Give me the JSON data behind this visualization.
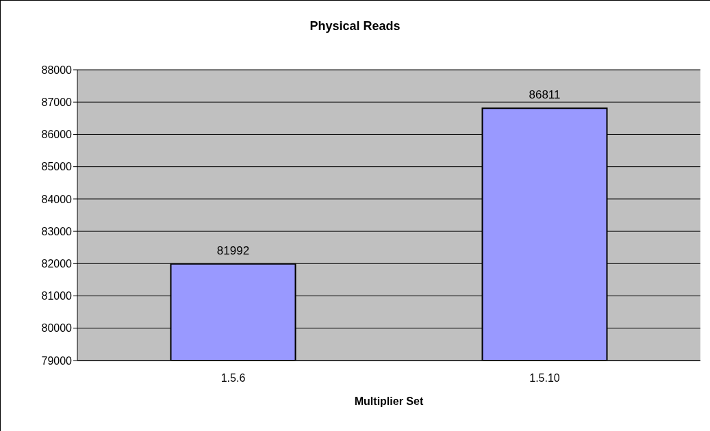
{
  "chart_data": {
    "type": "bar",
    "title": "Physical Reads",
    "xlabel": "Multiplier Set",
    "categories": [
      "1.5.6",
      "1.5.10"
    ],
    "values": [
      81992,
      86811
    ],
    "color": "#9999ff",
    "ylim": [
      79000,
      88000
    ],
    "yticks": [
      79000,
      80000,
      81000,
      82000,
      83000,
      84000,
      85000,
      86000,
      87000,
      88000
    ],
    "grid": "y",
    "data_labels": true
  }
}
